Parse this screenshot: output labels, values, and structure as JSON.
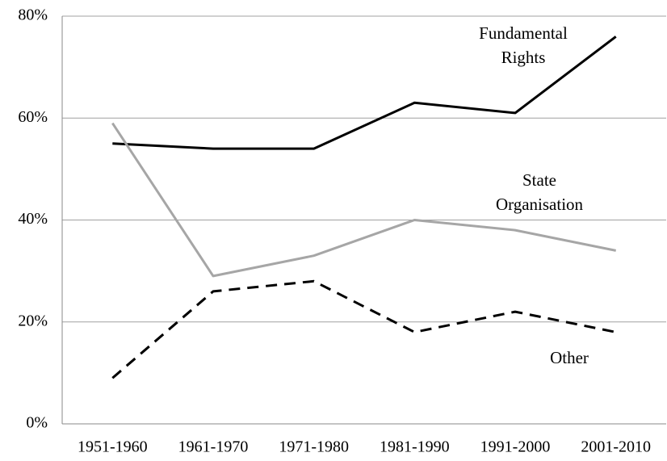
{
  "chart_data": {
    "type": "line",
    "categories": [
      "1951-1960",
      "1961-1970",
      "1971-1980",
      "1981-1990",
      "1991-2000",
      "2001-2010"
    ],
    "series": [
      {
        "name": "Fundamental Rights",
        "color": "#000000",
        "dashed": false,
        "values": [
          55,
          54,
          54,
          63,
          61,
          76
        ]
      },
      {
        "name": "State Organisation",
        "color": "#a6a6a6",
        "dashed": false,
        "values": [
          59,
          29,
          33,
          40,
          38,
          34
        ]
      },
      {
        "name": "Other",
        "color": "#000000",
        "dashed": true,
        "values": [
          9,
          26,
          28,
          18,
          22,
          18
        ]
      }
    ],
    "ylim": [
      0,
      80
    ],
    "yticks": [
      {
        "value": 0,
        "label": "0%"
      },
      {
        "value": 20,
        "label": "20%"
      },
      {
        "value": 40,
        "label": "40%"
      },
      {
        "value": 60,
        "label": "60%"
      },
      {
        "value": 80,
        "label": "80%"
      }
    ],
    "grid": true
  }
}
